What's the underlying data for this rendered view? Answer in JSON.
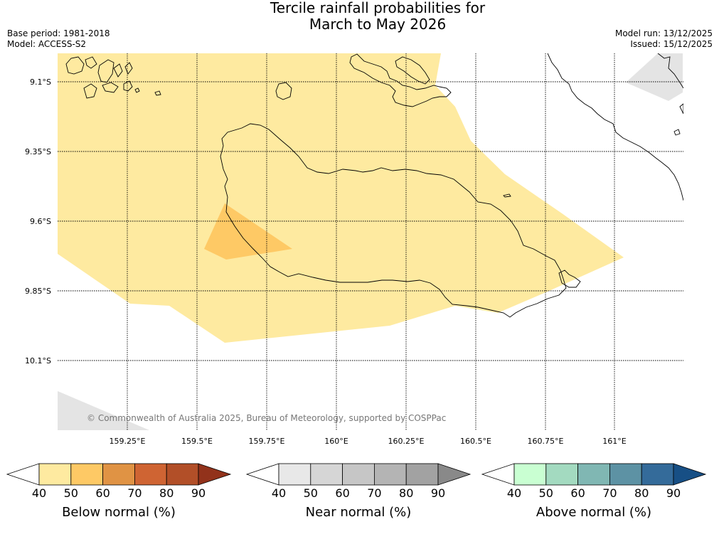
{
  "title_line1": "Tercile rainfall probabilities for",
  "title_line2": "March to May 2026",
  "base_period": "Base period: 1981-2018",
  "model": "Model: ACCESS-S2",
  "model_run": "Model run: 13/12/2025",
  "issued": "Issued: 15/12/2025",
  "credit": "© Commonwealth of Australia 2025, Bureau of Meteorology, supported by COSPPac",
  "lat_labels": [
    "9.1°S",
    "9.35°S",
    "9.6°S",
    "9.85°S",
    "10.1°S"
  ],
  "lon_labels": [
    "159.25°E",
    "159.5°E",
    "159.75°E",
    "160°E",
    "160.25°E",
    "160.5°E",
    "160.75°E",
    "161°E"
  ],
  "colorbars": [
    {
      "label": "Below normal (%)",
      "ticks": [
        "40",
        "50",
        "60",
        "70",
        "80",
        "90"
      ],
      "colors": [
        "#ffffff",
        "#feeaa0",
        "#fec965",
        "#e09344",
        "#cf6433",
        "#b24f28",
        "#92321b"
      ]
    },
    {
      "label": "Near normal (%)",
      "ticks": [
        "40",
        "50",
        "60",
        "70",
        "80",
        "90"
      ],
      "colors": [
        "#ffffff",
        "#e8e8e8",
        "#d6d6d6",
        "#c6c6c6",
        "#b4b4b4",
        "#a2a2a2",
        "#898989"
      ]
    },
    {
      "label": "Above normal (%)",
      "ticks": [
        "40",
        "50",
        "60",
        "70",
        "80",
        "90"
      ],
      "colors": [
        "#ffffff",
        "#c9ffd2",
        "#a3dac0",
        "#80b7b3",
        "#5d92a4",
        "#346b9a",
        "#174f85"
      ]
    }
  ]
}
